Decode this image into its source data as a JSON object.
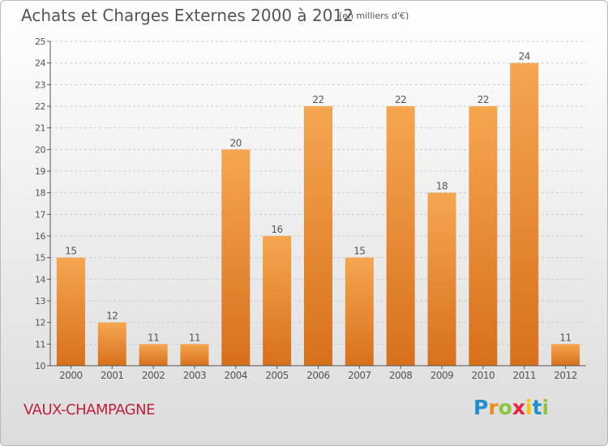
{
  "header": {
    "title": "Achats et Charges Externes 2000 à 2012",
    "unit": "(en milliers d'€)"
  },
  "footer": {
    "commune": "VAUX-CHAMPAGNE",
    "logo": {
      "letters": [
        "P",
        "r",
        "o",
        "x",
        "i",
        "t",
        "i"
      ],
      "colors": [
        "#1f8fd0",
        "#f08a1d",
        "#8cc63e",
        "#e8233e",
        "#f5c400",
        "#1f8fd0",
        "#8cc63e"
      ]
    }
  },
  "colors": {
    "bar_light": "#f6a650",
    "bar_dark": "#d8701c",
    "axis": "#555555",
    "grid": "#cccccc"
  },
  "chart_data": {
    "type": "bar",
    "title": "Achats et Charges Externes 2000 à 2012",
    "unit_label": "(en milliers d'€)",
    "categories": [
      "2000",
      "2001",
      "2002",
      "2003",
      "2004",
      "2005",
      "2006",
      "2007",
      "2008",
      "2009",
      "2010",
      "2011",
      "2012"
    ],
    "values": [
      15,
      12,
      11,
      11,
      20,
      16,
      22,
      15,
      22,
      18,
      22,
      24,
      11
    ],
    "ylim": [
      10,
      25
    ],
    "yticks": [
      10,
      11,
      12,
      13,
      14,
      15,
      16,
      17,
      18,
      19,
      20,
      21,
      22,
      23,
      24,
      25
    ],
    "grid": "horizontal dashed",
    "data_labels": true
  }
}
